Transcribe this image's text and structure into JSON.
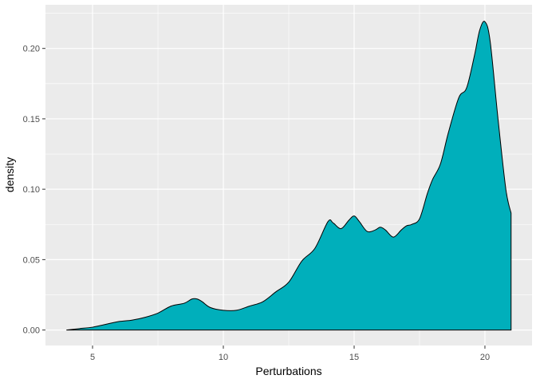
{
  "chart_data": {
    "type": "area",
    "title": "",
    "xlabel": "Perturbations",
    "ylabel": "density",
    "xlim": [
      3.2,
      21.8
    ],
    "ylim": [
      -0.011,
      0.231
    ],
    "x_ticks": [
      5,
      10,
      15,
      20
    ],
    "x_tick_labels": [
      "5",
      "10",
      "15",
      "20"
    ],
    "y_ticks": [
      0.0,
      0.05,
      0.1,
      0.15,
      0.2
    ],
    "y_tick_labels": [
      "0.00",
      "0.05",
      "0.10",
      "0.15",
      "0.20"
    ],
    "grid": true,
    "legend": false,
    "fill_color": "#00AFBB",
    "line_color": "#000000",
    "panel_background": "#EBEBEB",
    "grid_color": "#FFFFFF",
    "series": [
      {
        "x": [
          4.0,
          4.5,
          5.0,
          5.5,
          6.0,
          6.5,
          7.0,
          7.5,
          8.0,
          8.5,
          8.8,
          9.0,
          9.2,
          9.5,
          10.0,
          10.5,
          11.0,
          11.5,
          12.0,
          12.5,
          13.0,
          13.5,
          14.0,
          14.2,
          14.5,
          14.8,
          15.0,
          15.2,
          15.5,
          15.8,
          16.0,
          16.2,
          16.5,
          16.8,
          17.0,
          17.2,
          17.5,
          17.8,
          18.0,
          18.3,
          18.6,
          19.0,
          19.3,
          19.6,
          19.8,
          20.0,
          20.2,
          20.5,
          20.8,
          21.0
        ],
        "y": [
          0.0,
          0.001,
          0.002,
          0.004,
          0.006,
          0.007,
          0.009,
          0.012,
          0.017,
          0.019,
          0.022,
          0.022,
          0.02,
          0.016,
          0.014,
          0.014,
          0.017,
          0.02,
          0.027,
          0.034,
          0.049,
          0.058,
          0.077,
          0.076,
          0.072,
          0.078,
          0.081,
          0.077,
          0.07,
          0.071,
          0.073,
          0.071,
          0.066,
          0.071,
          0.074,
          0.075,
          0.079,
          0.097,
          0.107,
          0.118,
          0.14,
          0.165,
          0.172,
          0.195,
          0.213,
          0.219,
          0.205,
          0.15,
          0.1,
          0.083
        ]
      }
    ]
  }
}
